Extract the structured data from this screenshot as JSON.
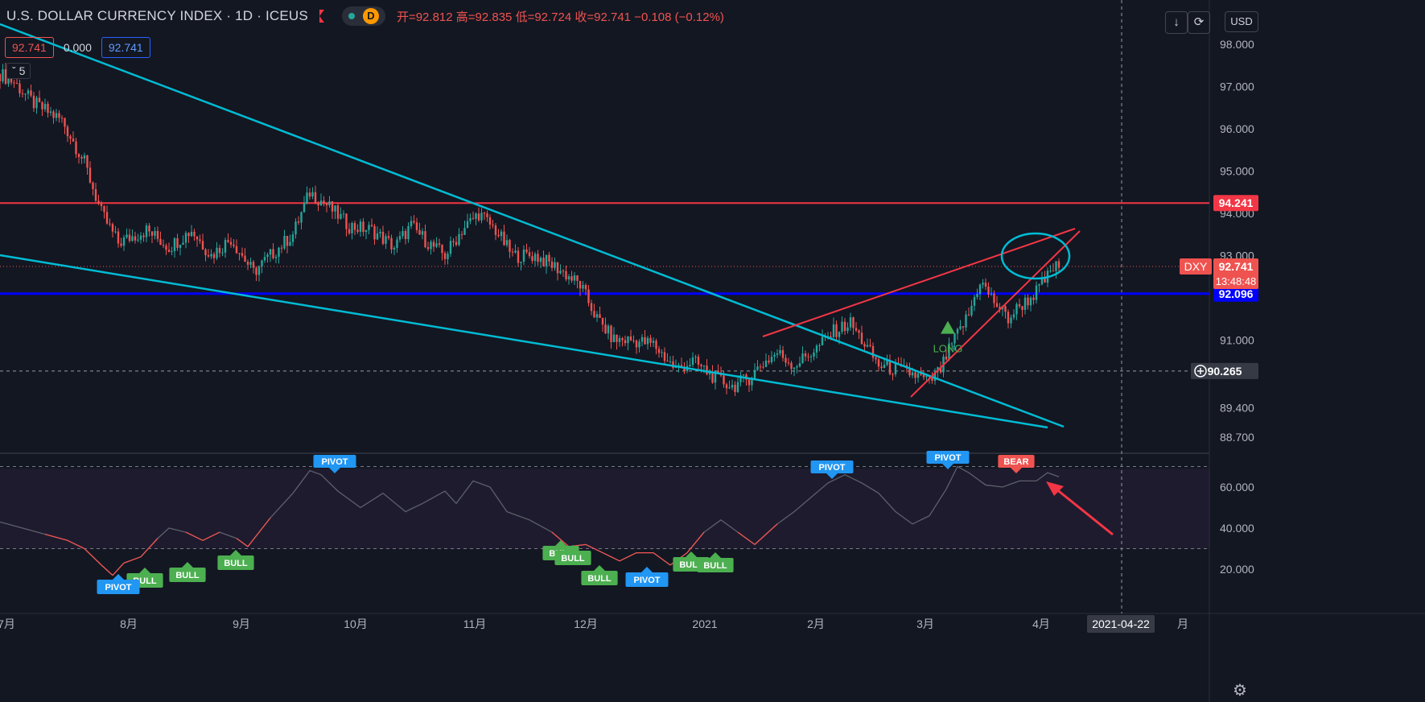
{
  "header": {
    "symbol": "U.S. DOLLAR CURRENCY INDEX · 1D · ICEUS",
    "session_badge": "D",
    "ohlc": "开=92.812  高=92.835  低=92.724  收=92.741  −0.108 (−0.12%)"
  },
  "indicator_values": {
    "value_1": "92.741",
    "value_2": "0.000",
    "value_3": "92.741"
  },
  "collapse_label": "5",
  "toolbar": {
    "download_icon": "arrow-down-icon",
    "fullscreen_icon": "fullscreen-icon",
    "currency": "USD"
  },
  "price_scale": {
    "ticks": [
      "98.000",
      "97.000",
      "96.000",
      "95.000",
      "94.000",
      "93.000",
      "91.000",
      "89.400",
      "88.700"
    ],
    "labels": {
      "resistance": "94.241",
      "symbol": "DXY",
      "last": "92.741",
      "countdown": "13:48:48",
      "support": "92.096",
      "crosshair": "90.265"
    }
  },
  "osc_scale": {
    "ticks": [
      "60.000",
      "40.000",
      "20.000"
    ]
  },
  "time_axis": {
    "labels": [
      "7月",
      "8月",
      "9月",
      "10月",
      "11月",
      "12月",
      "2021",
      "2月",
      "3月",
      "4月",
      "月"
    ],
    "crosshair_date": "2021-04-22"
  },
  "chart_data": {
    "type": "candlestick",
    "title": "U.S. DOLLAR CURRENCY INDEX",
    "interval": "1D",
    "y_range": [
      88.4,
      98.4
    ],
    "last_price": 92.741,
    "horizontal_levels": [
      {
        "value": 94.241,
        "color": "#f23645"
      },
      {
        "value": 92.096,
        "color": "#0000ff"
      },
      {
        "value": 90.265,
        "style": "dashed"
      }
    ],
    "candles_close_path": [
      [
        0,
        97.3
      ],
      [
        5,
        97.1
      ],
      [
        12,
        96.6
      ],
      [
        22,
        96.2
      ],
      [
        30,
        95.2
      ],
      [
        36,
        94.0
      ],
      [
        42,
        93.3
      ],
      [
        52,
        93.6
      ],
      [
        60,
        93.2
      ],
      [
        68,
        93.6
      ],
      [
        75,
        93.0
      ],
      [
        82,
        93.4
      ],
      [
        90,
        92.6
      ],
      [
        96,
        93.0
      ],
      [
        104,
        93.5
      ],
      [
        110,
        94.5
      ],
      [
        116,
        94.2
      ],
      [
        124,
        93.7
      ],
      [
        132,
        93.6
      ],
      [
        140,
        93.2
      ],
      [
        146,
        93.7
      ],
      [
        152,
        93.3
      ],
      [
        158,
        93.0
      ],
      [
        164,
        93.6
      ],
      [
        170,
        94.0
      ],
      [
        176,
        93.6
      ],
      [
        182,
        93.0
      ],
      [
        190,
        93.0
      ],
      [
        198,
        92.7
      ],
      [
        206,
        92.3
      ],
      [
        212,
        91.5
      ],
      [
        218,
        91.0
      ],
      [
        224,
        91.0
      ],
      [
        232,
        90.9
      ],
      [
        240,
        90.3
      ],
      [
        246,
        90.5
      ],
      [
        254,
        90.1
      ],
      [
        260,
        89.9
      ],
      [
        266,
        90.1
      ],
      [
        270,
        90.4
      ],
      [
        276,
        90.7
      ],
      [
        282,
        90.4
      ],
      [
        290,
        90.8
      ],
      [
        296,
        91.2
      ],
      [
        302,
        91.4
      ],
      [
        306,
        91.0
      ],
      [
        312,
        90.4
      ],
      [
        318,
        90.3
      ],
      [
        324,
        90.2
      ],
      [
        330,
        90.0
      ],
      [
        334,
        90.3
      ],
      [
        338,
        90.9
      ],
      [
        344,
        91.6
      ],
      [
        348,
        92.4
      ],
      [
        352,
        92.0
      ],
      [
        358,
        91.5
      ],
      [
        362,
        91.8
      ],
      [
        366,
        92.0
      ],
      [
        370,
        92.3
      ],
      [
        374,
        92.7
      ],
      [
        376,
        92.741
      ]
    ],
    "long_signal": {
      "label": "LONG",
      "x": 346,
      "price": 91.3
    },
    "oscillator": {
      "y_range": [
        15,
        75
      ],
      "levels": [
        70,
        30
      ],
      "values": [
        [
          0,
          43
        ],
        [
          8,
          40
        ],
        [
          16,
          37
        ],
        [
          24,
          34
        ],
        [
          30,
          30
        ],
        [
          36,
          22
        ],
        [
          40,
          17
        ],
        [
          44,
          23
        ],
        [
          50,
          26
        ],
        [
          56,
          35
        ],
        [
          60,
          40
        ],
        [
          66,
          38
        ],
        [
          72,
          34
        ],
        [
          78,
          38
        ],
        [
          84,
          35
        ],
        [
          88,
          31
        ],
        [
          96,
          45
        ],
        [
          104,
          57
        ],
        [
          110,
          68
        ],
        [
          114,
          66
        ],
        [
          120,
          58
        ],
        [
          128,
          50
        ],
        [
          136,
          57
        ],
        [
          144,
          48
        ],
        [
          150,
          52
        ],
        [
          158,
          58
        ],
        [
          162,
          52
        ],
        [
          168,
          63
        ],
        [
          174,
          60
        ],
        [
          180,
          48
        ],
        [
          188,
          44
        ],
        [
          196,
          38
        ],
        [
          202,
          31
        ],
        [
          208,
          32
        ],
        [
          214,
          28
        ],
        [
          220,
          24
        ],
        [
          226,
          28
        ],
        [
          232,
          28
        ],
        [
          238,
          22
        ],
        [
          244,
          28
        ],
        [
          250,
          38
        ],
        [
          256,
          44
        ],
        [
          262,
          38
        ],
        [
          268,
          32
        ],
        [
          276,
          42
        ],
        [
          282,
          48
        ],
        [
          288,
          55
        ],
        [
          294,
          62
        ],
        [
          300,
          66
        ],
        [
          306,
          62
        ],
        [
          312,
          57
        ],
        [
          318,
          48
        ],
        [
          324,
          42
        ],
        [
          330,
          46
        ],
        [
          336,
          59
        ],
        [
          340,
          70
        ],
        [
          344,
          67
        ],
        [
          350,
          61
        ],
        [
          356,
          60
        ],
        [
          362,
          63
        ],
        [
          368,
          63
        ],
        [
          372,
          67
        ],
        [
          376,
          65
        ]
      ],
      "signals": [
        {
          "label": "PIVOT",
          "x": 110,
          "dir": "down"
        },
        {
          "label": "PIVOT",
          "x": 300,
          "dir": "down"
        },
        {
          "label": "PIVOT",
          "x": 340,
          "dir": "down"
        },
        {
          "label": "BEAR",
          "x": 372,
          "dir": "down",
          "type": "bear"
        },
        {
          "label": "BULL",
          "x": 44,
          "dir": "up"
        },
        {
          "label": "BULL",
          "x": 58,
          "dir": "up"
        },
        {
          "label": "BULL",
          "x": 76,
          "dir": "up"
        },
        {
          "label": "PIVOT",
          "x": 40,
          "dir": "up",
          "type": "pivot-low"
        },
        {
          "label": "BULL",
          "x": 182,
          "dir": "up"
        },
        {
          "label": "BULL",
          "x": 186,
          "dir": "up"
        },
        {
          "label": "BULL",
          "x": 196,
          "dir": "up"
        },
        {
          "label": "PIVOT",
          "x": 214,
          "dir": "up",
          "type": "pivot-low"
        },
        {
          "label": "BULL",
          "x": 232,
          "dir": "up"
        },
        {
          "label": "BULL",
          "x": 240,
          "dir": "up"
        }
      ]
    },
    "colors": {
      "up": "#26a69a",
      "down": "#ef5350",
      "trend": "#00bcd4",
      "wedge": "#f23645"
    }
  }
}
